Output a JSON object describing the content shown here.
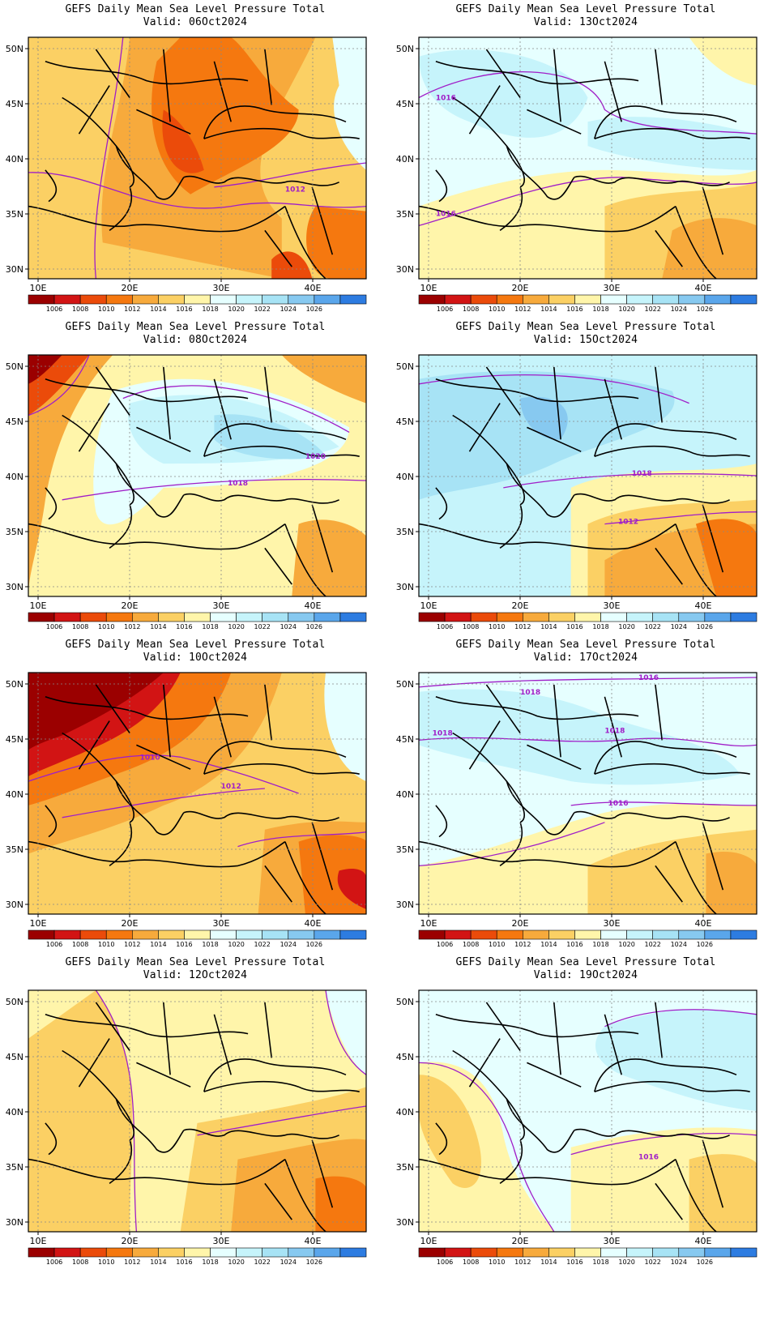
{
  "figure": {
    "panels": [
      {
        "id": "p1",
        "title": "GEFS Daily Mean Sea Level Pressure Total",
        "valid": "Valid: 06Oct2024",
        "scheme": "low1",
        "isobars": [
          "1012"
        ]
      },
      {
        "id": "p2",
        "title": "GEFS Daily Mean Sea Level Pressure Total",
        "valid": "Valid: 13Oct2024",
        "scheme": "high1",
        "isobars": [
          "1016",
          "1016"
        ]
      },
      {
        "id": "p3",
        "title": "GEFS Daily Mean Sea Level Pressure Total",
        "valid": "Valid: 08Oct2024",
        "scheme": "mixed1",
        "isobars": [
          "1020",
          "1018"
        ]
      },
      {
        "id": "p4",
        "title": "GEFS Daily Mean Sea Level Pressure Total",
        "valid": "Valid: 15Oct2024",
        "scheme": "high2",
        "isobars": [
          "1018",
          "1012"
        ]
      },
      {
        "id": "p5",
        "title": "GEFS Daily Mean Sea Level Pressure Total",
        "valid": "Valid: 10Oct2024",
        "scheme": "low2",
        "isobars": [
          "1010",
          "1012"
        ]
      },
      {
        "id": "p6",
        "title": "GEFS Daily Mean Sea Level Pressure Total",
        "valid": "Valid: 17Oct2024",
        "scheme": "high3",
        "isobars": [
          "1016",
          "1018",
          "1018",
          "1018",
          "1016"
        ]
      },
      {
        "id": "p7",
        "title": "GEFS Daily Mean Sea Level Pressure Total",
        "valid": "Valid: 12Oct2024",
        "scheme": "low3",
        "isobars": []
      },
      {
        "id": "p8",
        "title": "GEFS Daily Mean Sea Level Pressure Total",
        "valid": "Valid: 19Oct2024",
        "scheme": "high4",
        "isobars": [
          "1016"
        ]
      }
    ],
    "lat_ticks": [
      "50N",
      "45N",
      "40N",
      "35N",
      "30N"
    ],
    "lon_ticks": [
      "10E",
      "20E",
      "30E",
      "40E"
    ],
    "colorbar": {
      "labels": [
        "1006",
        "1008",
        "1010",
        "1012",
        "1014",
        "1016",
        "1018",
        "1020",
        "1022",
        "1024",
        "1026"
      ],
      "colors": [
        "#9b0000",
        "#d21414",
        "#eb4b0a",
        "#f5780f",
        "#f7aa3c",
        "#fbd064",
        "#fff5aa",
        "#e6ffff",
        "#c6f4fb",
        "#a7e3f5",
        "#87c9f0",
        "#5aa6eb",
        "#2d7ce1"
      ]
    },
    "contour_color": "#a01ec8"
  }
}
